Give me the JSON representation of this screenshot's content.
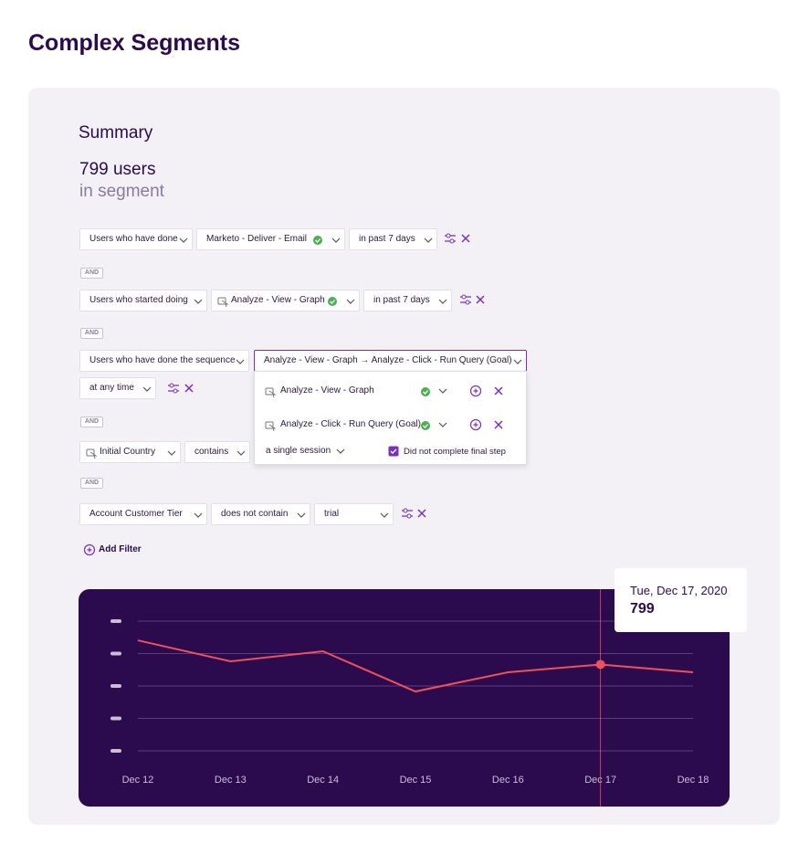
{
  "header": {
    "title": "Complex Segments"
  },
  "summary": {
    "title": "Summary",
    "count": "799 users",
    "caption": "in segment"
  },
  "filters": [
    {
      "fields": [
        "Users who have done",
        "Marketo - Deliver - Email",
        "in past 7 days"
      ]
    },
    {
      "fields": [
        "Users who started doing",
        "Analyze - View - Graph",
        "in past 7 days"
      ]
    },
    {
      "fields": [
        "Users who have done the sequence",
        "Analyze - View - Graph → Analyze - Click - Run Query (Goal)",
        "at any time"
      ]
    },
    {
      "fields": [
        "Initial Country",
        "contains"
      ]
    },
    {
      "fields": [
        "Account Customer Tier",
        "does not contain",
        "trial"
      ]
    }
  ],
  "connectors": [
    "AND",
    "AND",
    "AND",
    "AND"
  ],
  "sequence_menu": {
    "steps": [
      "Analyze - View - Graph",
      "Analyze - Click - Run Query (Goal)"
    ],
    "session": "a single session",
    "checkbox": "Did not complete final step"
  },
  "add_filter": "Add Filter",
  "chart_data": {
    "type": "line",
    "categories": [
      "Dec 12",
      "Dec 13",
      "Dec 14",
      "Dec 15",
      "Dec 16",
      "Dec 17",
      "Dec 18"
    ],
    "series": [
      {
        "name": "Users",
        "color": "#f0505a",
        "values": [
          1022,
          828,
          921,
          549,
          727,
          799,
          727
        ]
      }
    ],
    "ylim": [
      0,
      1200
    ],
    "yticks": [
      0,
      300,
      600,
      900,
      1200
    ],
    "grid": true,
    "tooltip": "Tue, Dec 17, 2020"
  }
}
